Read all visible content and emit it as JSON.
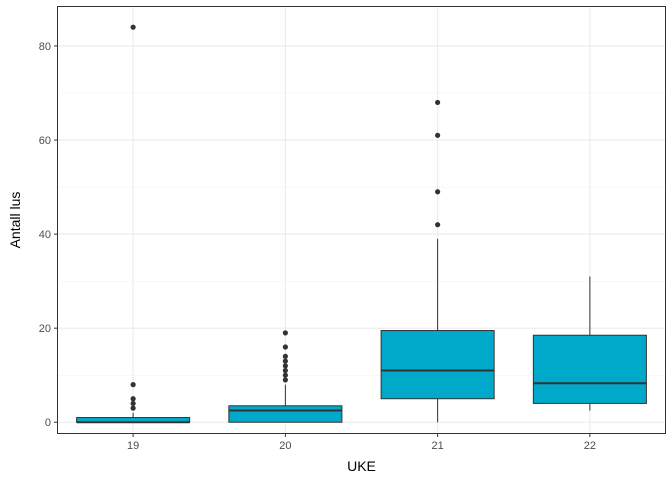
{
  "chart_data": {
    "type": "boxplot",
    "xlabel": "UKE",
    "ylabel": "Antall lus",
    "ylim": [
      -2.5,
      88.5
    ],
    "yticks": [
      0,
      20,
      40,
      60,
      80
    ],
    "categories": [
      "19",
      "20",
      "21",
      "22"
    ],
    "fill_color": "#00a9c9",
    "boxes": [
      {
        "category": "19",
        "lower_whisker": 0,
        "q1": 0,
        "median": 0,
        "q3": 1,
        "upper_whisker": 2,
        "outliers": [
          3,
          4,
          5,
          8,
          84
        ]
      },
      {
        "category": "20",
        "lower_whisker": 0,
        "q1": 0,
        "median": 2.5,
        "q3": 3.5,
        "upper_whisker": 8,
        "outliers": [
          9,
          10,
          11,
          12,
          13,
          14,
          16,
          19
        ]
      },
      {
        "category": "21",
        "lower_whisker": 0,
        "q1": 5,
        "median": 11,
        "q3": 19.5,
        "upper_whisker": 39,
        "outliers": [
          42,
          49,
          61,
          68
        ]
      },
      {
        "category": "22",
        "lower_whisker": 2.5,
        "q1": 4,
        "median": 8.3,
        "q3": 18.5,
        "upper_whisker": 31,
        "outliers": []
      }
    ]
  }
}
